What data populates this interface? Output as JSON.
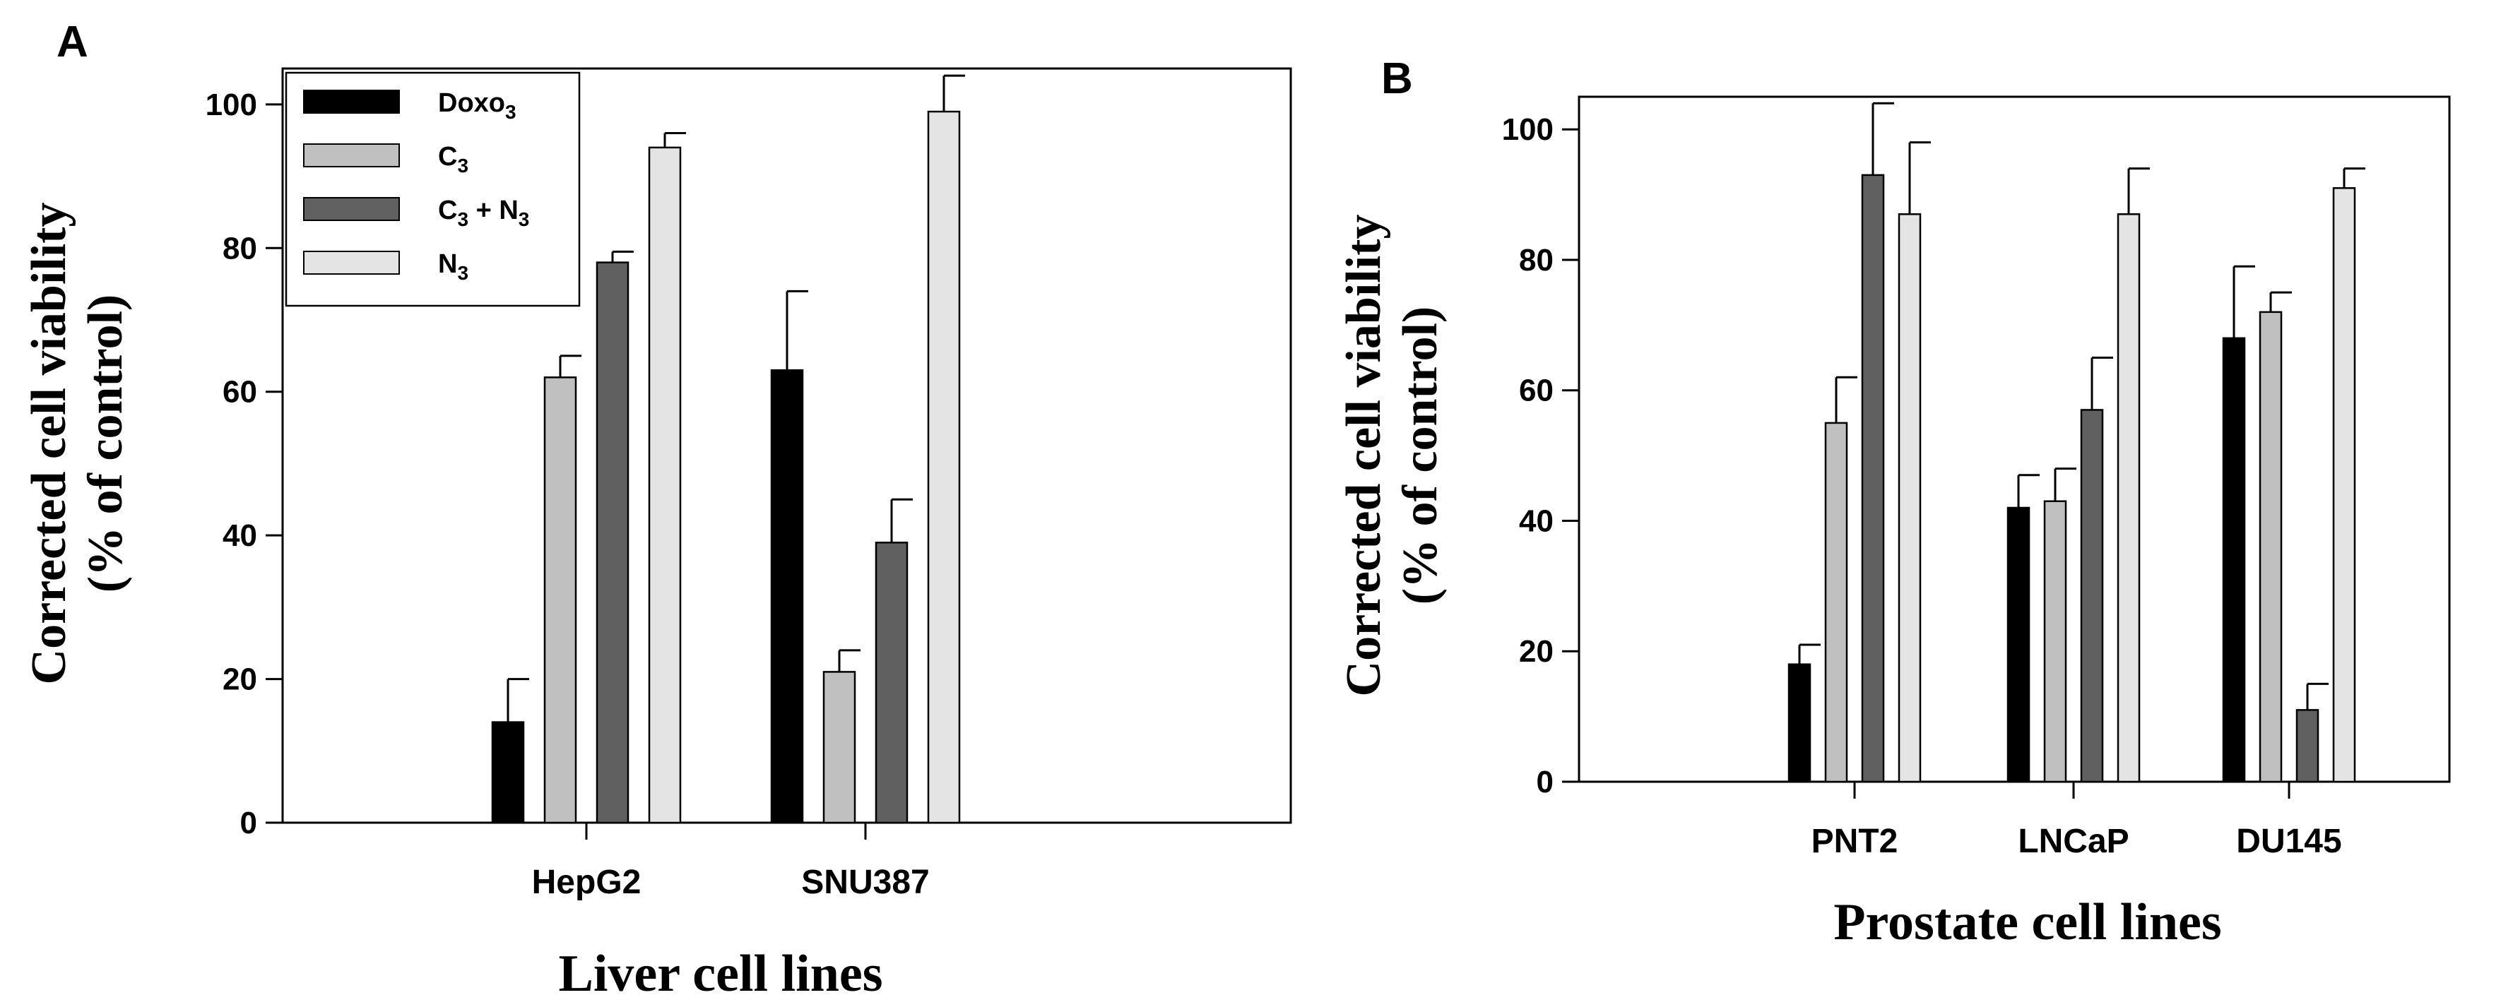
{
  "colors": {
    "Doxo3": "#000000",
    "C3": "#c0c0c0",
    "C3N3": "#606060",
    "N3": "#e4e4e4",
    "axis": "#000000"
  },
  "legend": [
    {
      "key": "Doxo3",
      "base": "Doxo",
      "sub": "3",
      "rest": "",
      "sub2": ""
    },
    {
      "key": "C3",
      "base": "C",
      "sub": "3",
      "rest": "",
      "sub2": ""
    },
    {
      "key": "C3N3",
      "base": "C",
      "sub": "3",
      "rest": " + N",
      "sub2": "3"
    },
    {
      "key": "N3",
      "base": "N",
      "sub": "3",
      "rest": "",
      "sub2": ""
    }
  ],
  "chart_data": [
    {
      "panel": "A",
      "type": "bar",
      "categories": [
        "HepG2",
        "SNU387"
      ],
      "series": [
        {
          "name": "Doxo3",
          "values": [
            14,
            63
          ],
          "errors": [
            6,
            11
          ]
        },
        {
          "name": "C3",
          "values": [
            62,
            21
          ],
          "errors": [
            3,
            3
          ]
        },
        {
          "name": "C3 + N3",
          "values": [
            78,
            39
          ],
          "errors": [
            1.5,
            6
          ]
        },
        {
          "name": "N3",
          "values": [
            94,
            99
          ],
          "errors": [
            2,
            5
          ]
        }
      ],
      "yticks": [
        "0",
        "20",
        "40",
        "60",
        "80",
        "100"
      ],
      "ylim": [
        0,
        105
      ],
      "ylabel_line1": "Corrected cell viability",
      "ylabel_line2": "(% of control)",
      "xlabel": "Liver cell lines",
      "legend_position": "top-left"
    },
    {
      "panel": "B",
      "type": "bar",
      "categories": [
        "PNT2",
        "LNCaP",
        "DU145"
      ],
      "series": [
        {
          "name": "Doxo3",
          "values": [
            18,
            42,
            68
          ],
          "errors": [
            3,
            5,
            11
          ]
        },
        {
          "name": "C3",
          "values": [
            55,
            43,
            72
          ],
          "errors": [
            7,
            5,
            3
          ]
        },
        {
          "name": "C3 + N3",
          "values": [
            93,
            57,
            11
          ],
          "errors": [
            11,
            8,
            4
          ]
        },
        {
          "name": "N3",
          "values": [
            87,
            87,
            91
          ],
          "errors": [
            11,
            7,
            3
          ]
        }
      ],
      "yticks": [
        "0",
        "20",
        "40",
        "60",
        "80",
        "100"
      ],
      "ylim": [
        0,
        105
      ],
      "ylabel_line1": "Corrected cell viability",
      "ylabel_line2": "(% of control)",
      "xlabel": "Prostate cell lines"
    }
  ]
}
